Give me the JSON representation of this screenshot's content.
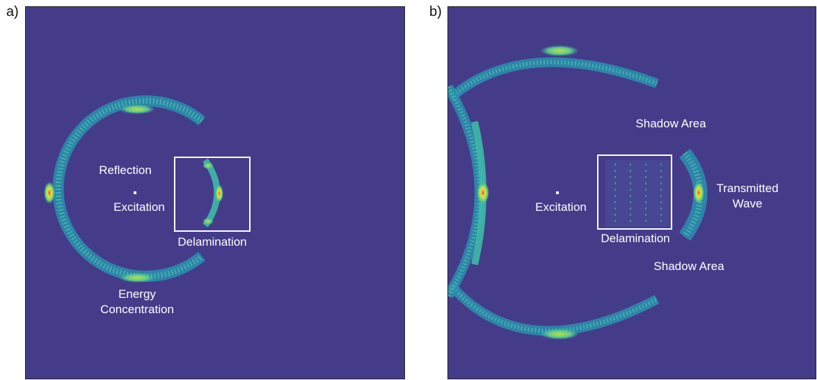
{
  "panels": [
    {
      "label": "a)",
      "annotations": {
        "reflection": "Reflection",
        "excitation": "Excitation",
        "delamination": "Delamination",
        "energy_line1": "Energy",
        "energy_line2": "Concentration"
      }
    },
    {
      "label": "b)",
      "annotations": {
        "shadow_top": "Shadow Area",
        "excitation": "Excitation",
        "delamination": "Delamination",
        "transmitted_line1": "Transmitted",
        "transmitted_line2": "Wave",
        "shadow_bottom": "Shadow Area"
      }
    }
  ],
  "colors": {
    "background": "#443c89",
    "wave_cyan": "#33b4b8",
    "wave_green": "#6fd36a",
    "wave_yellow": "#e6e04a",
    "wave_red": "#d9543a",
    "annotation": "#ffffff"
  }
}
